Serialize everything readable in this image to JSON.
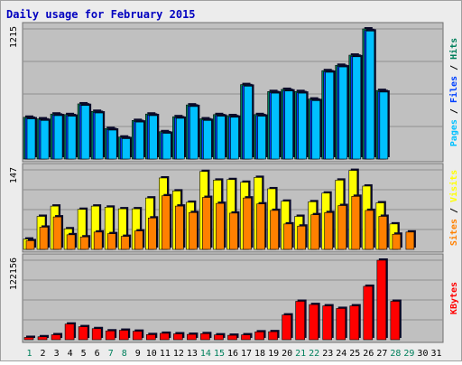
{
  "chart_data": [
    {
      "type": "bar",
      "title": "Daily usage for February 2015",
      "panel": "hits-files-pages",
      "categories": [
        "1",
        "2",
        "3",
        "4",
        "5",
        "6",
        "7",
        "8",
        "9",
        "10",
        "11",
        "12",
        "13",
        "14",
        "15",
        "16",
        "17",
        "18",
        "19",
        "20",
        "21",
        "22",
        "23",
        "24",
        "25",
        "26",
        "27",
        "28",
        "29",
        "30",
        "31"
      ],
      "ytick": "1215",
      "ylim": [
        0,
        1215
      ],
      "legend": {
        "pages": "Pages",
        "files": "Files",
        "hits": "Hits",
        "sep": " / "
      },
      "series": [
        {
          "name": "Hits",
          "color": "#00805c",
          "values": [
            390,
            375,
            420,
            415,
            515,
            445,
            285,
            205,
            360,
            420,
            255,
            395,
            505,
            375,
            415,
            405,
            695,
            415,
            630,
            650,
            630,
            560,
            825,
            875,
            970,
            1215,
            640,
            0,
            0,
            0,
            0
          ]
        },
        {
          "name": "Files",
          "color": "#0040ff",
          "values": [
            380,
            365,
            410,
            405,
            505,
            435,
            275,
            195,
            350,
            410,
            245,
            385,
            495,
            365,
            405,
            395,
            685,
            405,
            620,
            640,
            620,
            550,
            815,
            865,
            960,
            1200,
            630,
            0,
            0,
            0,
            0
          ]
        },
        {
          "name": "Pages",
          "color": "#00c0ff",
          "values": [
            375,
            360,
            405,
            400,
            500,
            430,
            270,
            190,
            345,
            405,
            240,
            380,
            490,
            360,
            400,
            390,
            680,
            400,
            615,
            635,
            615,
            545,
            810,
            860,
            955,
            1195,
            625,
            0,
            0,
            0,
            0
          ]
        }
      ]
    },
    {
      "type": "bar",
      "panel": "visits-sites",
      "categories": [
        "1",
        "2",
        "3",
        "4",
        "5",
        "6",
        "7",
        "8",
        "9",
        "10",
        "11",
        "12",
        "13",
        "14",
        "15",
        "16",
        "17",
        "18",
        "19",
        "20",
        "21",
        "22",
        "23",
        "24",
        "25",
        "26",
        "27",
        "28",
        "29",
        "30",
        "31"
      ],
      "ytick": "147",
      "ylim": [
        0,
        147
      ],
      "legend": {
        "sites": "Sites",
        "visits": "Visits",
        "sep": " / "
      },
      "series": [
        {
          "name": "Visits",
          "color": "#ffff00",
          "values": [
            19,
            61,
            80,
            38,
            74,
            80,
            78,
            75,
            75,
            95,
            132,
            108,
            87,
            144,
            128,
            129,
            124,
            133,
            112,
            89,
            61,
            88,
            104,
            128,
            146,
            117,
            86,
            47,
            0,
            0,
            0
          ]
        },
        {
          "name": "Sites",
          "color": "#ff8000",
          "values": [
            16,
            41,
            60,
            27,
            23,
            32,
            29,
            24,
            34,
            58,
            99,
            80,
            68,
            96,
            85,
            67,
            95,
            84,
            72,
            47,
            43,
            64,
            68,
            81,
            98,
            72,
            61,
            28,
            32,
            0,
            0
          ]
        }
      ]
    },
    {
      "type": "bar",
      "panel": "kbytes",
      "categories": [
        "1",
        "2",
        "3",
        "4",
        "5",
        "6",
        "7",
        "8",
        "9",
        "10",
        "11",
        "12",
        "13",
        "14",
        "15",
        "16",
        "17",
        "18",
        "19",
        "20",
        "21",
        "22",
        "23",
        "24",
        "25",
        "26",
        "27",
        "28",
        "29",
        "30",
        "31"
      ],
      "ytick": "122156",
      "ylim": [
        0,
        122156
      ],
      "legend": {
        "kbytes": "KBytes"
      },
      "series": [
        {
          "name": "KBytes",
          "color": "#ff0000",
          "values": [
            3500,
            4500,
            7600,
            24000,
            20000,
            17000,
            13500,
            14500,
            13000,
            7800,
            9800,
            9000,
            8200,
            9300,
            7400,
            6800,
            7500,
            12000,
            12300,
            38000,
            59000,
            54000,
            52000,
            48000,
            52000,
            82000,
            122156,
            59000,
            0,
            0,
            0
          ]
        }
      ]
    }
  ],
  "day_labels": [
    "1",
    "2",
    "3",
    "4",
    "5",
    "6",
    "7",
    "8",
    "9",
    "10",
    "11",
    "12",
    "13",
    "14",
    "15",
    "16",
    "17",
    "18",
    "19",
    "20",
    "21",
    "22",
    "23",
    "24",
    "25",
    "26",
    "27",
    "28",
    "29",
    "30",
    "31"
  ],
  "weekend_days": [
    1,
    7,
    8,
    14,
    15,
    21,
    22,
    28,
    29
  ],
  "colors": {
    "title": "#0000c0",
    "weekday": "#000000",
    "weekend": "#00805c",
    "plot_bg": "#c0c0c0",
    "gridline": "#909090",
    "shadow": "#0a0a2a"
  }
}
